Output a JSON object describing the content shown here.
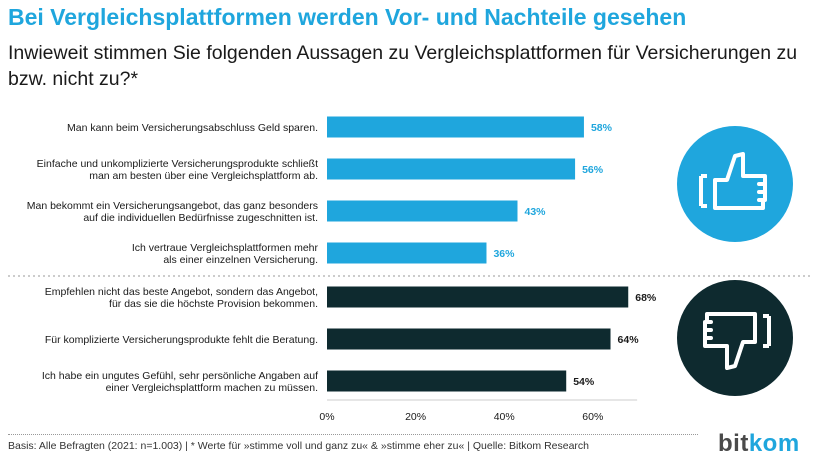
{
  "header": {
    "title": "Bei Vergleichsplattformen werden Vor- und Nachteile gesehen",
    "subtitle": "Inwieweit stimmen Sie folgenden Aussagen zu Vergleichsplattformen für Versicherungen zu bzw. nicht zu?*"
  },
  "chart_data": {
    "type": "bar",
    "orientation": "horizontal",
    "value_suffix": "%",
    "xlim": [
      0,
      70
    ],
    "xticks": [
      0,
      20,
      40,
      60
    ],
    "xtick_labels": [
      "0%",
      "20%",
      "40%",
      "60%"
    ],
    "grid": false,
    "groups": [
      {
        "sentiment": "positive",
        "color": "#1fa6dd",
        "icon": "thumbs-up-icon",
        "bars": [
          {
            "label": [
              "Man kann beim Versicherungsabschluss Geld sparen."
            ],
            "value": 58
          },
          {
            "label": [
              "Einfache und unkomplizierte Versicherungsprodukte schließt",
              "man am besten über eine Vergleichsplattform ab."
            ],
            "value": 56
          },
          {
            "label": [
              "Man bekommt ein Versicherungsangebot, das ganz besonders",
              "auf die individuellen Bedürfnisse zugeschnitten ist."
            ],
            "value": 43
          },
          {
            "label": [
              "Ich vertraue Vergleichsplattformen mehr",
              "als einer einzelnen Versicherung."
            ],
            "value": 36
          }
        ]
      },
      {
        "sentiment": "negative",
        "color": "#0e2a2f",
        "icon": "thumbs-down-icon",
        "bars": [
          {
            "label": [
              "Empfehlen nicht das beste Angebot, sondern das Angebot,",
              "für das sie die höchste Provision bekommen."
            ],
            "value": 68
          },
          {
            "label": [
              "Für komplizierte Versicherungsprodukte fehlt die Beratung."
            ],
            "value": 64
          },
          {
            "label": [
              "Ich habe ein ungutes Gefühl, sehr persönliche Angaben auf",
              "einer Vergleichsplattform machen zu müssen."
            ],
            "value": 54
          }
        ]
      }
    ]
  },
  "footer": {
    "source": "Basis: Alle Befragten (2021: n=1.003) | * Werte für »stimme voll und ganz zu« & »stimme eher zu« | Quelle: Bitkom Research"
  },
  "brand": {
    "logo_part1": "bit",
    "logo_part2": "kom",
    "colors": {
      "accent": "#1fa6dd",
      "dark": "#0e2a2f"
    }
  }
}
